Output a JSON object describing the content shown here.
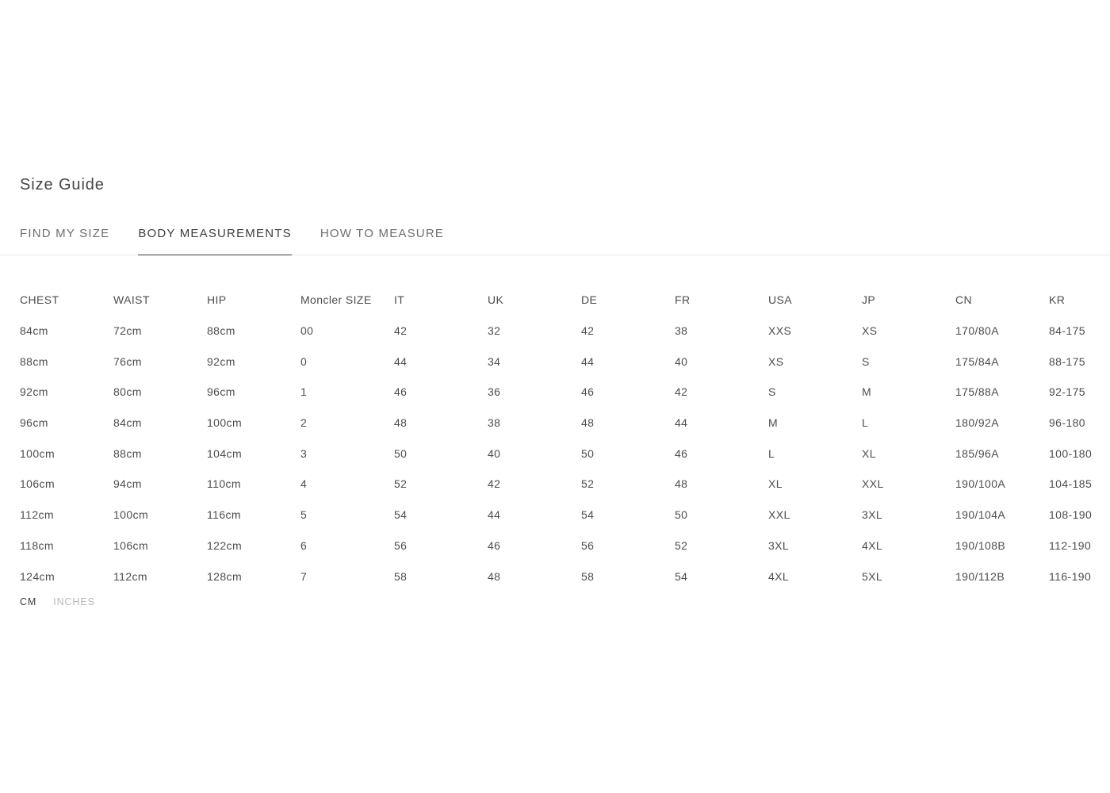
{
  "page": {
    "title": "Size Guide"
  },
  "tabs": [
    {
      "label": "FIND MY SIZE",
      "active": false
    },
    {
      "label": "BODY MEASUREMENTS",
      "active": true
    },
    {
      "label": "HOW TO MEASURE",
      "active": false
    }
  ],
  "table": {
    "headers": [
      "CHEST",
      "WAIST",
      "HIP",
      "Moncler SIZE",
      "IT",
      "UK",
      "DE",
      "FR",
      "USA",
      "JP",
      "CN",
      "KR"
    ],
    "rows": [
      [
        "84cm",
        "72cm",
        "88cm",
        "00",
        "42",
        "32",
        "42",
        "38",
        "XXS",
        "XS",
        "170/80A",
        "84-175"
      ],
      [
        "88cm",
        "76cm",
        "92cm",
        "0",
        "44",
        "34",
        "44",
        "40",
        "XS",
        "S",
        "175/84A",
        "88-175"
      ],
      [
        "92cm",
        "80cm",
        "96cm",
        "1",
        "46",
        "36",
        "46",
        "42",
        "S",
        "M",
        "175/88A",
        "92-175"
      ],
      [
        "96cm",
        "84cm",
        "100cm",
        "2",
        "48",
        "38",
        "48",
        "44",
        "M",
        "L",
        "180/92A",
        "96-180"
      ],
      [
        "100cm",
        "88cm",
        "104cm",
        "3",
        "50",
        "40",
        "50",
        "46",
        "L",
        "XL",
        "185/96A",
        "100-180"
      ],
      [
        "106cm",
        "94cm",
        "110cm",
        "4",
        "52",
        "42",
        "52",
        "48",
        "XL",
        "XXL",
        "190/100A",
        "104-185"
      ],
      [
        "112cm",
        "100cm",
        "116cm",
        "5",
        "54",
        "44",
        "54",
        "50",
        "XXL",
        "3XL",
        "190/104A",
        "108-190"
      ],
      [
        "118cm",
        "106cm",
        "122cm",
        "6",
        "56",
        "46",
        "56",
        "52",
        "3XL",
        "4XL",
        "190/108B",
        "112-190"
      ],
      [
        "124cm",
        "112cm",
        "128cm",
        "7",
        "58",
        "48",
        "58",
        "54",
        "4XL",
        "5XL",
        "190/112B",
        "116-190"
      ]
    ]
  },
  "units": {
    "options": [
      {
        "label": "CM",
        "active": true
      },
      {
        "label": "INCHES",
        "active": false
      }
    ]
  },
  "colors": {
    "text": "#4d4d4d",
    "tab_active": "#3d3d3d",
    "tab_inactive": "#6e6e6e",
    "unit_inactive": "#b8b8b8",
    "divider": "#e8e8e8",
    "background": "#ffffff"
  }
}
